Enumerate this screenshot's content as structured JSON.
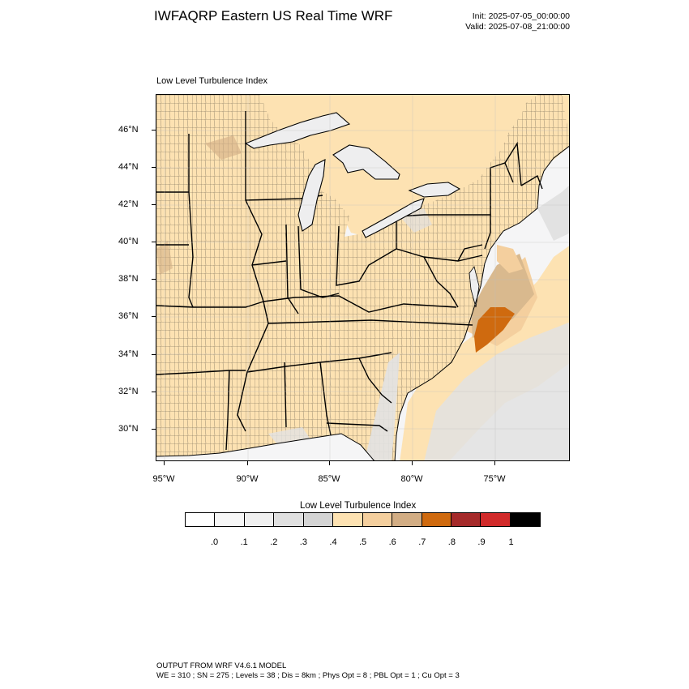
{
  "header": {
    "title": "IWFAQRP Eastern US Real Time WRF",
    "init": "Init: 2025-07-05_00:00:00",
    "valid": "Valid: 2025-07-08_21:00:00"
  },
  "panel": {
    "title": "Low Level Turbulence Index"
  },
  "map": {
    "lat_labels": [
      "46°N",
      "44°N",
      "42°N",
      "40°N",
      "38°N",
      "36°N",
      "34°N",
      "32°N",
      "30°N"
    ],
    "lon_labels": [
      "95°W",
      "90°W",
      "85°W",
      "80°W",
      "75°W"
    ],
    "colors": {
      "land": "#fde2b2",
      "water": "#f4f4f6",
      "lake": "#eeeeef",
      "cell_low": "#e0e0e0",
      "cell_mid": "#d3d3d3",
      "level_06": "#d9b98e",
      "level_07": "#cf6a0f",
      "border": "#000000"
    },
    "max_turbulence_region": "offshore North Carolina"
  },
  "colorbar": {
    "title": "Low Level Turbulence Index",
    "colors": [
      "#ffffff",
      "#f7f7f7",
      "#f0f0f0",
      "#e0e0e0",
      "#d4d4d4",
      "#fde2b2",
      "#f4cf9e",
      "#d2ad84",
      "#cf6a0f",
      "#a52a2a",
      "#d12a2a",
      "#000000"
    ],
    "labels": [
      ".0",
      ".1",
      ".2",
      ".3",
      ".4",
      ".5",
      ".6",
      ".7",
      ".8",
      ".9",
      "1"
    ]
  },
  "footer": {
    "line1": "OUTPUT FROM WRF V4.6.1 MODEL",
    "line2": "WE = 310 ; SN = 275 ; Levels = 38 ; Dis = 8km ; Phys Opt = 8 ; PBL Opt = 1 ; Cu Opt = 3"
  }
}
